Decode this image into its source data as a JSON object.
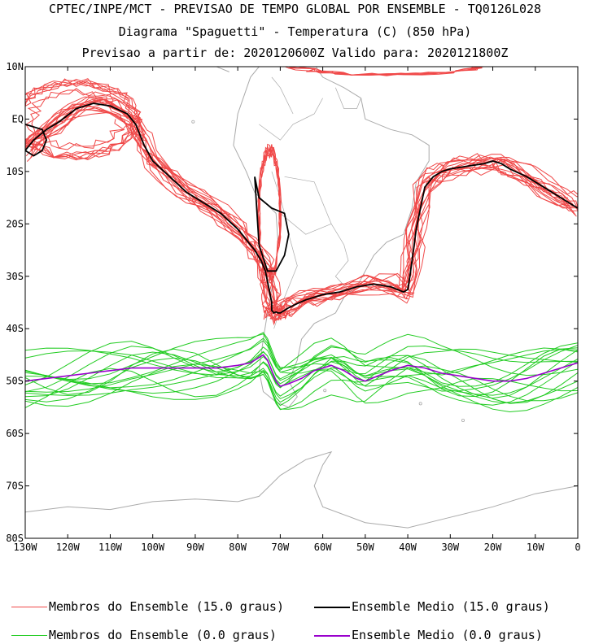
{
  "header": {
    "title": "CPTEC/INPE/MCT - PREVISAO DE TEMPO GLOBAL POR ENSEMBLE - TQ0126L028",
    "subtitle": "Diagrama \"Spaguetti\" - Temperatura (C) (850 hPa)",
    "validity": "Previsao a partir de: 2020120600Z  Valido para: 2020121800Z"
  },
  "colors": {
    "members_15": "#f04848",
    "mean_15": "#000000",
    "members_0": "#22cc22",
    "mean_0": "#9900cc",
    "coast": "#aaaaaa"
  },
  "chart_data": {
    "type": "line",
    "title": "Diagrama \"Spaguetti\" - Temperatura (C) (850 hPa)",
    "xlim": [
      -130,
      0
    ],
    "ylim": [
      -80,
      10
    ],
    "x_ticks": [
      {
        "value": -130,
        "label": "130W"
      },
      {
        "value": -120,
        "label": "120W"
      },
      {
        "value": -110,
        "label": "110W"
      },
      {
        "value": -100,
        "label": "100W"
      },
      {
        "value": -90,
        "label": "90W"
      },
      {
        "value": -80,
        "label": "80W"
      },
      {
        "value": -70,
        "label": "70W"
      },
      {
        "value": -60,
        "label": "60W"
      },
      {
        "value": -50,
        "label": "50W"
      },
      {
        "value": -40,
        "label": "40W"
      },
      {
        "value": -30,
        "label": "30W"
      },
      {
        "value": -20,
        "label": "20W"
      },
      {
        "value": -10,
        "label": "10W"
      },
      {
        "value": 0,
        "label": "0"
      }
    ],
    "y_ticks": [
      {
        "value": 10,
        "label": "10N"
      },
      {
        "value": 0,
        "label": "EQ"
      },
      {
        "value": -10,
        "label": "10S"
      },
      {
        "value": -20,
        "label": "20S"
      },
      {
        "value": -30,
        "label": "30S"
      },
      {
        "value": -40,
        "label": "40S"
      },
      {
        "value": -50,
        "label": "50S"
      },
      {
        "value": -60,
        "label": "60S"
      },
      {
        "value": -70,
        "label": "70S"
      },
      {
        "value": -80,
        "label": "80S"
      }
    ],
    "legend": {
      "placement": "bottom",
      "entries": [
        {
          "label": "Membros do Ensemble (15.0 graus)",
          "color": "#f04848"
        },
        {
          "label": "Ensemble Medio (15.0 graus)",
          "color": "#000000"
        },
        {
          "label": "Membros do Ensemble (0.0 graus)",
          "color": "#22cc22"
        },
        {
          "label": "Ensemble Medio (0.0 graus)",
          "color": "#9900cc"
        }
      ]
    },
    "series": [
      {
        "name": "Ensemble Medio (15.0 graus)",
        "color": "#000000",
        "lon": [
          -130,
          -128,
          -125,
          -122,
          -118,
          -114,
          -110,
          -106,
          -104,
          -103,
          -102,
          -100,
          -96,
          -92,
          -88,
          -84,
          -80,
          -78,
          -76,
          -74.5,
          -73.5,
          -73,
          -72.5,
          -72,
          -72,
          -72,
          -71.5,
          -71,
          -70.5,
          -70,
          -69,
          -68,
          -66,
          -64,
          -60,
          -56,
          -52,
          -48,
          -44,
          -41,
          -40,
          -39.5,
          -39,
          -38.5,
          -38,
          -37,
          -36,
          -34,
          -32,
          -30,
          -26,
          -22,
          -20,
          -18,
          -16,
          -12,
          -8,
          -4,
          -2,
          0
        ],
        "lat": [
          -6,
          -4,
          -2,
          -0.5,
          2,
          3,
          2.5,
          1,
          -1,
          -3,
          -5,
          -8,
          -11,
          -14,
          -16,
          -18,
          -21,
          -23,
          -25,
          -27,
          -29,
          -31,
          -33,
          -35,
          -36.5,
          -36.5,
          -37,
          -36.8,
          -37,
          -37,
          -36.5,
          -36,
          -35.2,
          -34.5,
          -33.5,
          -33,
          -32,
          -31.5,
          -32,
          -33,
          -32.5,
          -30,
          -27,
          -24,
          -21,
          -17,
          -13,
          -11,
          -10,
          -9.5,
          -9,
          -8.5,
          -8,
          -8.5,
          -9.5,
          -11,
          -13,
          -15,
          -16,
          -17
        ]
      }
    ]
  },
  "legend": {
    "members_15": "Membros do Ensemble (15.0 graus)",
    "mean_15": "Ensemble Medio (15.0 graus)",
    "members_0": "Membros do Ensemble (0.0 graus)",
    "mean_0": "Ensemble Medio (0.0 graus)"
  }
}
